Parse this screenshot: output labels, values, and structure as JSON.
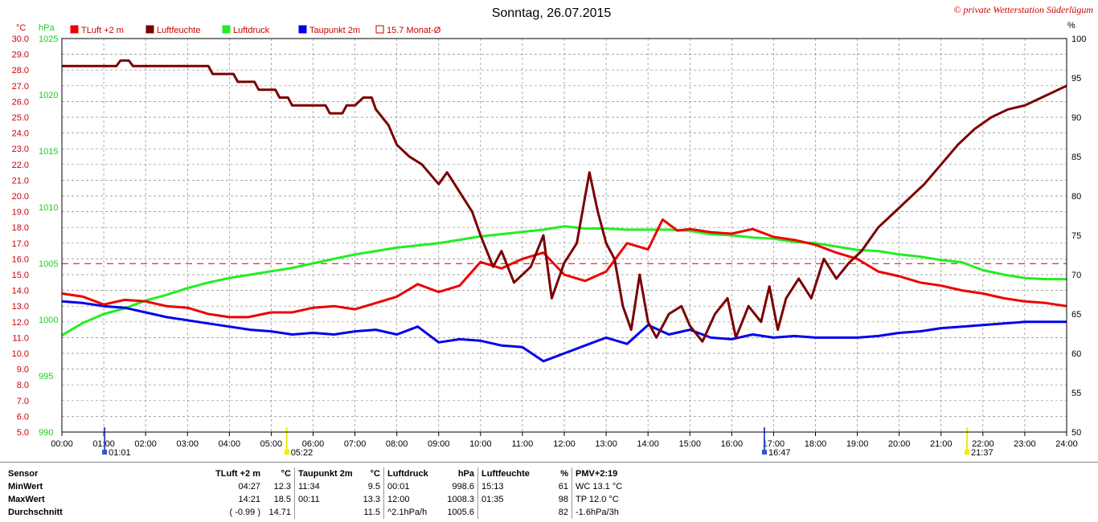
{
  "title": "Sonntag, 26.07.2015",
  "copyright": "© private Wetterstation Süderlügum",
  "colors": {
    "temp": "#ee0000",
    "humidity": "#7a0000",
    "pressure": "#22ee22",
    "dewpoint": "#0000ee",
    "monthavg": "#cc0000",
    "grid": "#888888"
  },
  "axes": {
    "temp_unit": "°C",
    "pressure_unit": "hPa",
    "humidity_unit": "%",
    "temp_ticks": [
      "30.0",
      "29.0",
      "28.0",
      "27.0",
      "26.0",
      "25.0",
      "24.0",
      "23.0",
      "22.0",
      "21.0",
      "20.0",
      "19.0",
      "18.0",
      "17.0",
      "16.0",
      "15.0",
      "14.0",
      "13.0",
      "12.0",
      "11.0",
      "10.0",
      "9.0",
      "8.0",
      "7.0",
      "6.0",
      "5.0"
    ],
    "pressure_ticks": [
      "1025",
      "1020",
      "1015",
      "1010",
      "1005",
      "1000",
      "995",
      "990"
    ],
    "humidity_ticks": [
      "100",
      "95",
      "90",
      "85",
      "80",
      "75",
      "70",
      "65",
      "60",
      "55",
      "50"
    ],
    "time_ticks": [
      "00:00",
      "01:00",
      "02:00",
      "03:00",
      "04:00",
      "05:00",
      "06:00",
      "07:00",
      "08:00",
      "09:00",
      "10:00",
      "11:00",
      "12:00",
      "13:00",
      "14:00",
      "15:00",
      "16:00",
      "17:00",
      "18:00",
      "19:00",
      "20:00",
      "21:00",
      "22:00",
      "23:00",
      "24:00"
    ],
    "markers": [
      {
        "label": "01:01",
        "hour": 1.02,
        "color": "#3355cc"
      },
      {
        "label": "05:22",
        "hour": 5.37,
        "color": "#eeee00"
      },
      {
        "label": "16:47",
        "hour": 16.78,
        "color": "#3355cc"
      },
      {
        "label": "21:37",
        "hour": 21.62,
        "color": "#eeee00"
      }
    ]
  },
  "legend": [
    {
      "label": "TLuft +2 m",
      "color": "#ee0000",
      "filled": true
    },
    {
      "label": "Luftfeuchte",
      "color": "#7a0000",
      "filled": true
    },
    {
      "label": "Luftdruck",
      "color": "#22ee22",
      "filled": true
    },
    {
      "label": "Taupunkt 2m",
      "color": "#0000ee",
      "filled": true
    },
    {
      "label": "15.7 Monat-Ø",
      "color": "#cc0000",
      "filled": false
    }
  ],
  "chart_data": {
    "type": "line",
    "x_unit": "hour",
    "xlim": [
      0,
      24
    ],
    "temp_lim": [
      5,
      30
    ],
    "pressure_lim": [
      990,
      1025
    ],
    "humidity_lim": [
      50,
      100
    ],
    "month_avg_temp": 15.7,
    "series": [
      {
        "name": "TLuft +2 m",
        "axis": "temp",
        "points": [
          [
            0,
            13.8
          ],
          [
            0.5,
            13.6
          ],
          [
            1,
            13.1
          ],
          [
            1.5,
            13.4
          ],
          [
            2,
            13.3
          ],
          [
            2.5,
            13.0
          ],
          [
            3,
            12.9
          ],
          [
            3.5,
            12.5
          ],
          [
            4,
            12.3
          ],
          [
            4.45,
            12.3
          ],
          [
            5,
            12.6
          ],
          [
            5.5,
            12.6
          ],
          [
            6,
            12.9
          ],
          [
            6.5,
            13.0
          ],
          [
            7,
            12.8
          ],
          [
            7.5,
            13.2
          ],
          [
            8,
            13.6
          ],
          [
            8.5,
            14.4
          ],
          [
            9,
            13.9
          ],
          [
            9.5,
            14.3
          ],
          [
            10,
            15.8
          ],
          [
            10.5,
            15.4
          ],
          [
            11,
            16.0
          ],
          [
            11.5,
            16.4
          ],
          [
            12,
            15.0
          ],
          [
            12.5,
            14.6
          ],
          [
            13,
            15.2
          ],
          [
            13.5,
            17.0
          ],
          [
            14,
            16.6
          ],
          [
            14.35,
            18.5
          ],
          [
            14.7,
            17.8
          ],
          [
            15,
            17.9
          ],
          [
            15.5,
            17.7
          ],
          [
            16,
            17.6
          ],
          [
            16.5,
            17.9
          ],
          [
            17,
            17.4
          ],
          [
            17.5,
            17.2
          ],
          [
            18,
            16.9
          ],
          [
            18.5,
            16.4
          ],
          [
            19,
            16.0
          ],
          [
            19.5,
            15.2
          ],
          [
            20,
            14.9
          ],
          [
            20.5,
            14.5
          ],
          [
            21,
            14.3
          ],
          [
            21.5,
            14.0
          ],
          [
            22,
            13.8
          ],
          [
            22.5,
            13.5
          ],
          [
            23,
            13.3
          ],
          [
            23.5,
            13.2
          ],
          [
            24,
            13.0
          ]
        ]
      },
      {
        "name": "Luftfeuchte",
        "axis": "humidity",
        "points": [
          [
            0,
            96.5
          ],
          [
            1.3,
            96.5
          ],
          [
            1.4,
            97.2
          ],
          [
            1.6,
            97.2
          ],
          [
            1.7,
            96.5
          ],
          [
            3.5,
            96.5
          ],
          [
            3.6,
            95.5
          ],
          [
            4.1,
            95.5
          ],
          [
            4.2,
            94.5
          ],
          [
            4.6,
            94.5
          ],
          [
            4.7,
            93.5
          ],
          [
            5.1,
            93.5
          ],
          [
            5.2,
            92.5
          ],
          [
            5.4,
            92.5
          ],
          [
            5.5,
            91.5
          ],
          [
            6.3,
            91.5
          ],
          [
            6.4,
            90.5
          ],
          [
            6.7,
            90.5
          ],
          [
            6.8,
            91.5
          ],
          [
            7,
            91.5
          ],
          [
            7.2,
            92.5
          ],
          [
            7.4,
            92.5
          ],
          [
            7.5,
            91.0
          ],
          [
            7.8,
            89.0
          ],
          [
            8.0,
            86.5
          ],
          [
            8.3,
            85.0
          ],
          [
            8.6,
            84.0
          ],
          [
            9.0,
            81.5
          ],
          [
            9.2,
            83.0
          ],
          [
            9.5,
            80.5
          ],
          [
            9.8,
            78.0
          ],
          [
            10.0,
            75.0
          ],
          [
            10.3,
            71.0
          ],
          [
            10.5,
            73.0
          ],
          [
            10.8,
            69.0
          ],
          [
            11.2,
            71.0
          ],
          [
            11.5,
            75.0
          ],
          [
            11.7,
            67.0
          ],
          [
            12.0,
            71.5
          ],
          [
            12.3,
            74.0
          ],
          [
            12.6,
            83.0
          ],
          [
            12.8,
            78.0
          ],
          [
            13.0,
            74.0
          ],
          [
            13.2,
            72.0
          ],
          [
            13.4,
            66.0
          ],
          [
            13.6,
            63.0
          ],
          [
            13.8,
            70.0
          ],
          [
            14.0,
            64.0
          ],
          [
            14.2,
            62.0
          ],
          [
            14.5,
            65.0
          ],
          [
            14.8,
            66.0
          ],
          [
            15.0,
            63.5
          ],
          [
            15.3,
            61.5
          ],
          [
            15.6,
            65.0
          ],
          [
            15.9,
            67.0
          ],
          [
            16.1,
            62.0
          ],
          [
            16.4,
            66.0
          ],
          [
            16.7,
            64.0
          ],
          [
            16.9,
            68.5
          ],
          [
            17.1,
            63.0
          ],
          [
            17.3,
            67.0
          ],
          [
            17.6,
            69.5
          ],
          [
            17.9,
            67.0
          ],
          [
            18.2,
            72.0
          ],
          [
            18.5,
            69.5
          ],
          [
            18.8,
            71.5
          ],
          [
            19.1,
            73.0
          ],
          [
            19.5,
            76.0
          ],
          [
            19.8,
            77.5
          ],
          [
            20.2,
            79.5
          ],
          [
            20.6,
            81.5
          ],
          [
            21.0,
            84.0
          ],
          [
            21.4,
            86.5
          ],
          [
            21.8,
            88.5
          ],
          [
            22.2,
            90.0
          ],
          [
            22.6,
            91.0
          ],
          [
            23.0,
            91.5
          ],
          [
            23.4,
            92.5
          ],
          [
            23.8,
            93.5
          ],
          [
            24,
            94.0
          ]
        ]
      },
      {
        "name": "Luftdruck",
        "axis": "pressure",
        "points": [
          [
            0,
            998.6
          ],
          [
            0.5,
            999.7
          ],
          [
            1,
            1000.5
          ],
          [
            1.5,
            1001.0
          ],
          [
            2,
            1001.7
          ],
          [
            2.5,
            1002.2
          ],
          [
            3,
            1002.8
          ],
          [
            3.5,
            1003.3
          ],
          [
            4,
            1003.7
          ],
          [
            4.5,
            1004.0
          ],
          [
            5,
            1004.3
          ],
          [
            5.5,
            1004.6
          ],
          [
            6,
            1005.0
          ],
          [
            6.5,
            1005.4
          ],
          [
            7,
            1005.8
          ],
          [
            7.5,
            1006.1
          ],
          [
            8,
            1006.4
          ],
          [
            8.5,
            1006.6
          ],
          [
            9,
            1006.8
          ],
          [
            9.5,
            1007.1
          ],
          [
            10,
            1007.4
          ],
          [
            10.5,
            1007.6
          ],
          [
            11,
            1007.8
          ],
          [
            11.5,
            1008.0
          ],
          [
            12,
            1008.3
          ],
          [
            12.5,
            1008.1
          ],
          [
            13,
            1008.1
          ],
          [
            13.5,
            1008.0
          ],
          [
            14,
            1008.0
          ],
          [
            14.5,
            1008.0
          ],
          [
            15,
            1007.9
          ],
          [
            15.5,
            1007.6
          ],
          [
            16,
            1007.5
          ],
          [
            16.5,
            1007.3
          ],
          [
            17,
            1007.2
          ],
          [
            17.5,
            1006.9
          ],
          [
            18,
            1006.8
          ],
          [
            18.5,
            1006.5
          ],
          [
            19,
            1006.2
          ],
          [
            19.5,
            1006.1
          ],
          [
            20,
            1005.8
          ],
          [
            20.5,
            1005.6
          ],
          [
            21,
            1005.3
          ],
          [
            21.5,
            1005.1
          ],
          [
            22,
            1004.4
          ],
          [
            22.5,
            1004.0
          ],
          [
            23,
            1003.7
          ],
          [
            23.5,
            1003.6
          ],
          [
            24,
            1003.6
          ]
        ]
      },
      {
        "name": "Taupunkt 2m",
        "axis": "temp",
        "points": [
          [
            0,
            13.3
          ],
          [
            0.5,
            13.2
          ],
          [
            1,
            13.0
          ],
          [
            1.5,
            12.9
          ],
          [
            2,
            12.6
          ],
          [
            2.5,
            12.3
          ],
          [
            3,
            12.1
          ],
          [
            3.5,
            11.9
          ],
          [
            4,
            11.7
          ],
          [
            4.5,
            11.5
          ],
          [
            5,
            11.4
          ],
          [
            5.5,
            11.2
          ],
          [
            6,
            11.3
          ],
          [
            6.5,
            11.2
          ],
          [
            7,
            11.4
          ],
          [
            7.5,
            11.5
          ],
          [
            8,
            11.2
          ],
          [
            8.5,
            11.7
          ],
          [
            9,
            10.7
          ],
          [
            9.5,
            10.9
          ],
          [
            10,
            10.8
          ],
          [
            10.5,
            10.5
          ],
          [
            11,
            10.4
          ],
          [
            11.5,
            9.5
          ],
          [
            12,
            10.0
          ],
          [
            12.5,
            10.5
          ],
          [
            13,
            11.0
          ],
          [
            13.5,
            10.6
          ],
          [
            14,
            11.8
          ],
          [
            14.5,
            11.2
          ],
          [
            15,
            11.5
          ],
          [
            15.5,
            11.0
          ],
          [
            16,
            10.9
          ],
          [
            16.5,
            11.2
          ],
          [
            17,
            11.0
          ],
          [
            17.5,
            11.1
          ],
          [
            18,
            11.0
          ],
          [
            18.5,
            11.0
          ],
          [
            19,
            11.0
          ],
          [
            19.5,
            11.1
          ],
          [
            20,
            11.3
          ],
          [
            20.5,
            11.4
          ],
          [
            21,
            11.6
          ],
          [
            21.5,
            11.7
          ],
          [
            22,
            11.8
          ],
          [
            22.5,
            11.9
          ],
          [
            23,
            12.0
          ],
          [
            23.5,
            12.0
          ],
          [
            24,
            12.0
          ]
        ]
      }
    ]
  },
  "stats": {
    "header": {
      "sensor": "Sensor",
      "temp": "TLuft +2 m",
      "temp_unit": "°C",
      "dew": "Taupunkt 2m",
      "dew_unit": "°C",
      "press": "Luftdruck",
      "press_unit": "hPa",
      "hum": "Luftfeuchte",
      "hum_unit": "%",
      "pmv": "PMV+2:19"
    },
    "rows": [
      {
        "label": "MinWert",
        "t_time": "04:27",
        "t_val": "12.3",
        "d_time": "11:34",
        "d_val": "9.5",
        "p_time": "00:01",
        "p_val": "998.6",
        "h_time": "15:13",
        "h_val": "61",
        "extra": "WC 13.1 °C"
      },
      {
        "label": "MaxWert",
        "t_time": "14:21",
        "t_val": "18.5",
        "d_time": "00:11",
        "d_val": "13.3",
        "p_time": "12:00",
        "p_val": "1008.3",
        "h_time": "01:35",
        "h_val": "98",
        "extra": "TP 12.0 °C"
      },
      {
        "label": "Durchschnitt",
        "t_time": "( -0.99 )",
        "t_val": "14.71",
        "d_time": "",
        "d_val": "11.5",
        "p_time": "^2.1hPa/h",
        "p_val": "1005.6",
        "h_time": "",
        "h_val": "82",
        "extra": "-1.6hPa/3h"
      }
    ]
  }
}
